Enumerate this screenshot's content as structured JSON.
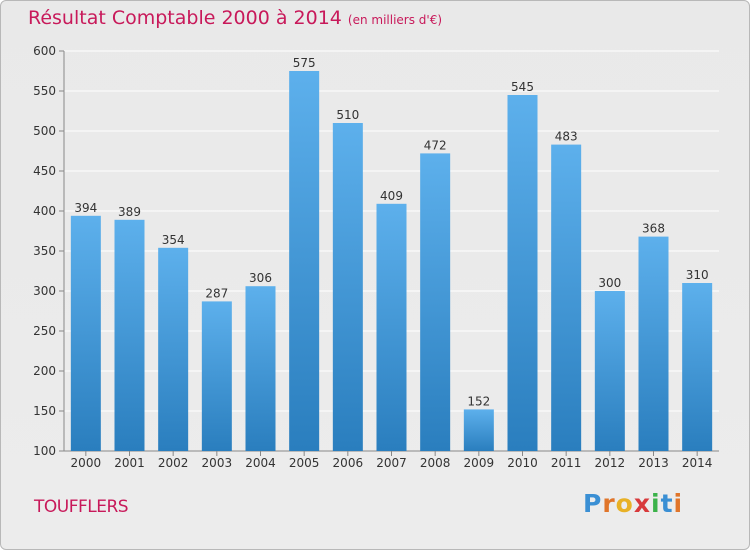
{
  "header": {
    "title": "Résultat Comptable 2000 à 2014",
    "subtitle": "(en milliers d'€)"
  },
  "footer": {
    "commune": "TOUFFLERS",
    "logo_letters": [
      "P",
      "r",
      "o",
      "x",
      "i",
      "t",
      "i"
    ],
    "logo_colors": [
      "#3a8fd4",
      "#e0752a",
      "#e8b126",
      "#d8393b",
      "#3bb24a",
      "#3a8fd4",
      "#e0752a"
    ]
  },
  "colors": {
    "bar_light": "#5db0ec",
    "bar_dark": "#2a7ebe",
    "grid": "#ffffff",
    "axis_text": "#333333",
    "title": "#c8195a"
  },
  "chart_data": {
    "type": "bar",
    "title": "Résultat Comptable 2000 à 2014",
    "subtitle": "(en milliers d'€)",
    "xlabel": "",
    "ylabel": "",
    "categories": [
      "2000",
      "2001",
      "2002",
      "2003",
      "2004",
      "2005",
      "2006",
      "2007",
      "2008",
      "2009",
      "2010",
      "2011",
      "2012",
      "2013",
      "2014"
    ],
    "values": [
      394,
      389,
      354,
      287,
      306,
      575,
      510,
      409,
      472,
      152,
      545,
      483,
      300,
      368,
      310
    ],
    "ylim": [
      100,
      600
    ],
    "yticks": [
      100,
      150,
      200,
      250,
      300,
      350,
      400,
      450,
      500,
      550,
      600
    ],
    "grid": true
  }
}
